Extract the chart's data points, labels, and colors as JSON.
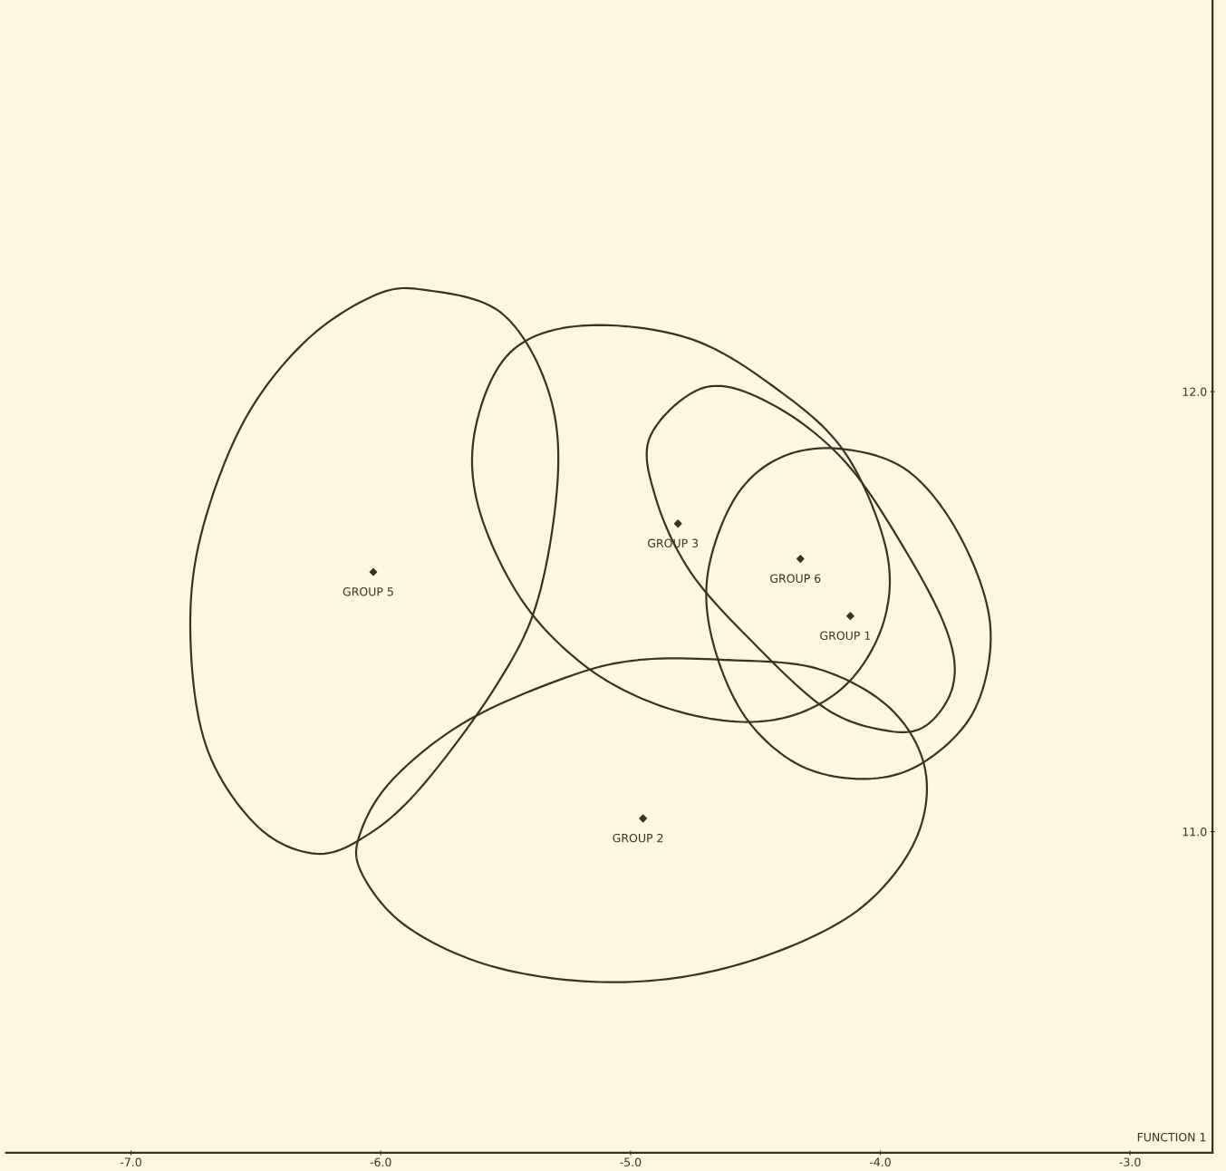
{
  "chart_data": {
    "type": "scatter",
    "xlabel": "FUNCTION 1",
    "xlim": [
      -7.5,
      -2.67
    ],
    "ylim": [
      10.27,
      12.89
    ],
    "xticks": [
      {
        "value": -7,
        "label": "-7.0"
      },
      {
        "value": -6,
        "label": "-6.0"
      },
      {
        "value": -5,
        "label": "-5.0"
      },
      {
        "value": -4,
        "label": "-4.0"
      },
      {
        "value": -3,
        "label": "-3.0"
      }
    ],
    "yticks": [
      {
        "value": 11,
        "label": "11.0"
      },
      {
        "value": 12,
        "label": "12.0"
      }
    ],
    "grid": false,
    "legend": false,
    "marker": "diamond",
    "series": [
      {
        "color": "#3a3226",
        "x": [
          -6.03,
          -4.81,
          -4.32,
          -4.12,
          -4.95
        ],
        "values": [
          11.59,
          11.7,
          11.62,
          11.49,
          11.03
        ]
      }
    ],
    "annotations": [
      {
        "text": "GROUP 5",
        "x": -6.03,
        "y": 11.59
      },
      {
        "text": "GROUP 3",
        "x": -4.81,
        "y": 11.7
      },
      {
        "text": "GROUP 6",
        "x": -4.32,
        "y": 11.62
      },
      {
        "text": "GROUP 1",
        "x": -4.12,
        "y": 11.49
      },
      {
        "text": "GROUP 2",
        "x": -4.95,
        "y": 11.03
      }
    ]
  }
}
